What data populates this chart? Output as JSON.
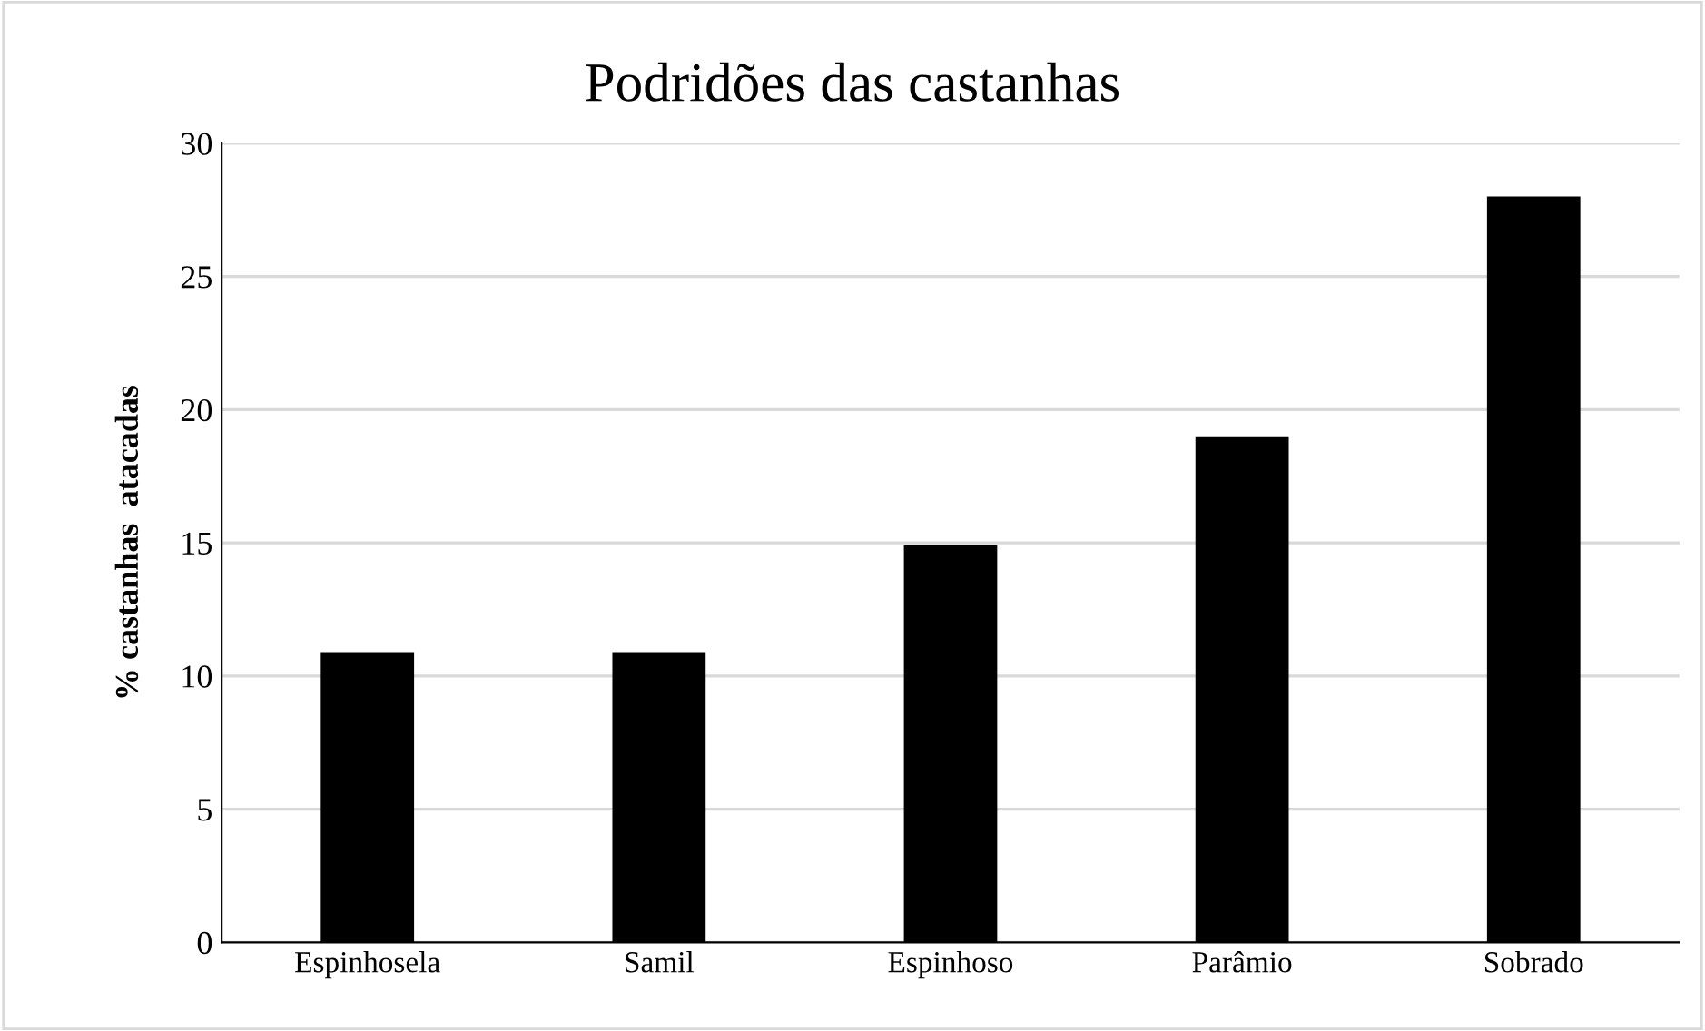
{
  "chart_data": {
    "type": "bar",
    "title": "Podridões das castanhas",
    "ylabel": "% castanhas  atacadas",
    "categories": [
      "Espinhosela",
      "Samil",
      "Espinhoso",
      "Parâmio",
      "Sobrado"
    ],
    "values": [
      10.9,
      10.9,
      14.9,
      19.0,
      28.0
    ],
    "color": "#000000",
    "ylim": [
      0,
      30
    ],
    "yticks": [
      0,
      5,
      10,
      15,
      20,
      25,
      30
    ],
    "grid": "y",
    "legend": false
  }
}
